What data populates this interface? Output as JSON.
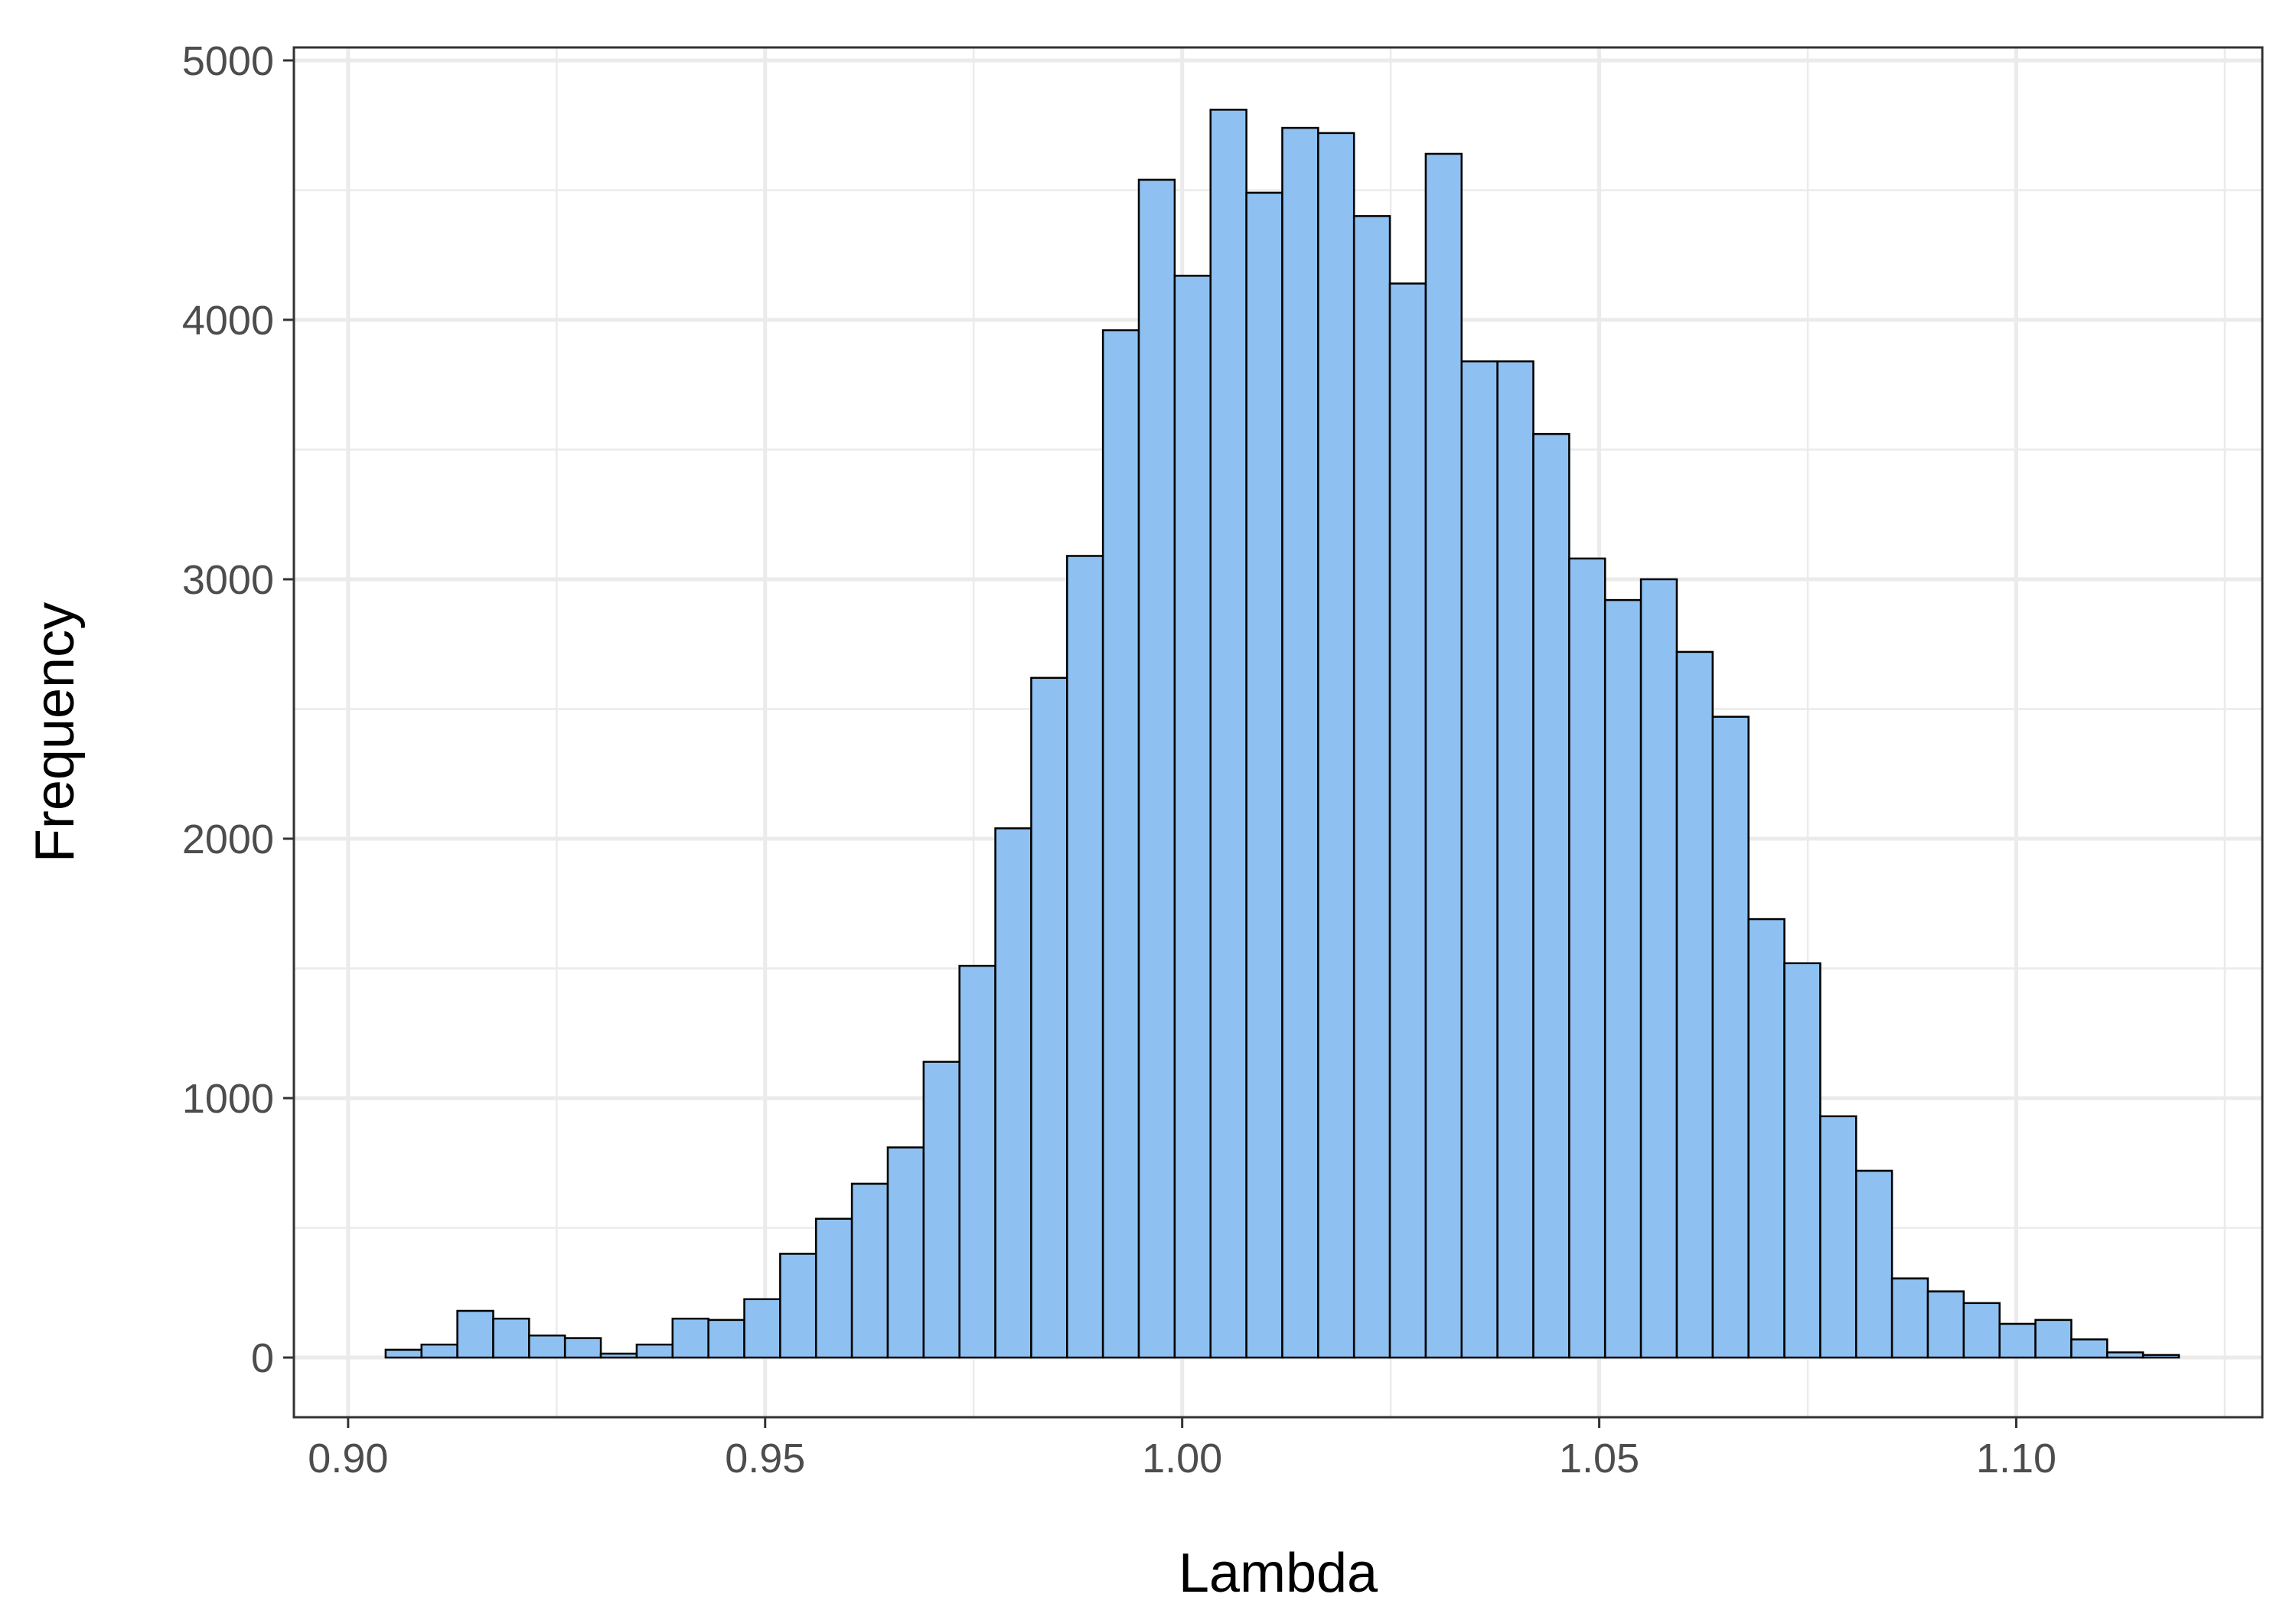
{
  "chart_data": {
    "type": "bar",
    "xlabel": "Lambda",
    "ylabel": "Frequency",
    "xlim": [
      0.8935,
      1.1295
    ],
    "ylim": [
      -230,
      5050
    ],
    "x_ticks": [
      0.9,
      0.95,
      1.0,
      1.05,
      1.1
    ],
    "x_tick_labels": [
      "0.90",
      "0.95",
      "1.00",
      "1.05",
      "1.10"
    ],
    "y_ticks": [
      0,
      1000,
      2000,
      3000,
      4000,
      5000
    ],
    "y_tick_labels": [
      "0",
      "1000",
      "2000",
      "3000",
      "4000",
      "5000"
    ],
    "grid": true,
    "bin_start": 0.9045,
    "bin_width": 0.0043,
    "values": [
      30,
      50,
      180,
      150,
      85,
      75,
      15,
      50,
      150,
      145,
      225,
      400,
      535,
      670,
      810,
      1140,
      1510,
      2040,
      2620,
      3090,
      3960,
      4540,
      4170,
      4810,
      4490,
      4740,
      4720,
      4400,
      4140,
      4640,
      3840,
      3840,
      3560,
      3080,
      2920,
      3000,
      2720,
      2470,
      1690,
      1520,
      930,
      720,
      305,
      255,
      210,
      130,
      145,
      70,
      20,
      10
    ],
    "colors": {
      "fill": "#8ec1f1",
      "outline": "#000000",
      "grid": "#ebebeb",
      "panel_border": "#333333"
    }
  }
}
